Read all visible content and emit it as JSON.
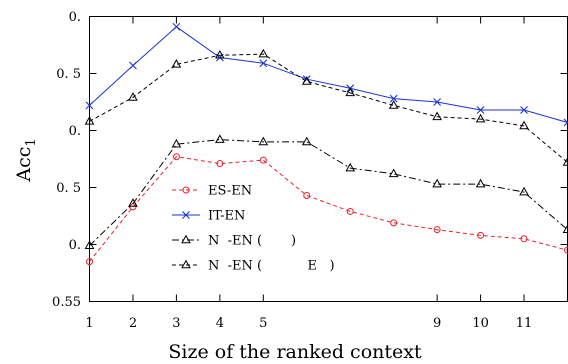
{
  "chart_data": {
    "type": "line",
    "xlabel": "Size of the ranked context",
    "ylabel": "Acc",
    "ylabel_subscript": "1",
    "x_tick_labels": [
      "1",
      "2",
      "3",
      "4",
      "5",
      "9",
      "10",
      "11"
    ],
    "x_tick_values": [
      1,
      2,
      3,
      4,
      5,
      9,
      10,
      11
    ],
    "xlim": [
      1,
      12
    ],
    "y_tick_labels": [
      "0.",
      "0. 5",
      "0.",
      "0. 5",
      "0.",
      "0.55"
    ],
    "ylim": [
      0.55,
      0.8
    ],
    "grid": false,
    "legend_position": "bottom-left-inside",
    "x": [
      1,
      2,
      3,
      4,
      5,
      6,
      7,
      8,
      9,
      10,
      11,
      12
    ],
    "series": [
      {
        "name": "ES-EN",
        "color": "#e8222a",
        "dash": "dashed",
        "marker": "circle",
        "values": [
          0.585,
          0.633,
          0.677,
          0.671,
          0.674,
          0.643,
          0.629,
          0.619,
          0.613,
          0.608,
          0.605,
          0.595
        ]
      },
      {
        "name": "IT-EN",
        "color": "#1a33d6",
        "dash": "solid",
        "marker": "x",
        "values": [
          0.722,
          0.757,
          0.791,
          0.764,
          0.759,
          0.745,
          0.737,
          0.728,
          0.725,
          0.718,
          0.718,
          0.707
        ]
      },
      {
        "name": "N  -EN (       )",
        "color": "#000000",
        "dash": "dashdot",
        "marker": "triangle",
        "values": [
          0.599,
          0.636,
          0.688,
          0.692,
          0.69,
          0.69,
          0.667,
          0.662,
          0.653,
          0.653,
          0.646,
          0.613
        ]
      },
      {
        "name": "N  -EN (           E   )",
        "color": "#000000",
        "dash": "dashed",
        "marker": "triangle",
        "values": [
          0.708,
          0.729,
          0.758,
          0.766,
          0.767,
          0.743,
          0.733,
          0.722,
          0.712,
          0.71,
          0.704,
          0.672
        ]
      }
    ]
  }
}
